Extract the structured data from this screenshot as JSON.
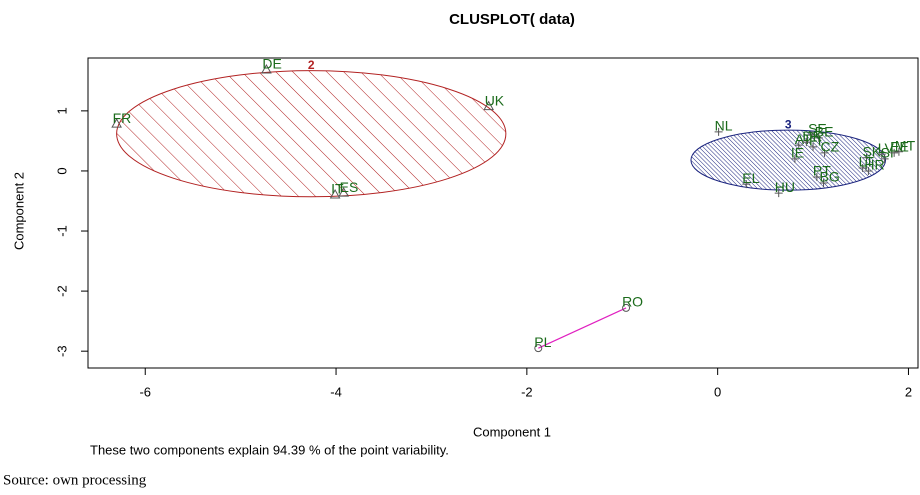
{
  "chart_data": {
    "type": "clusplot",
    "title": "CLUSPLOT( data)",
    "xlabel": "Component 1",
    "ylabel": "Component 2",
    "subtitle": "These two components explain 94.39 % of the point variability.",
    "xlim": [
      -6.6,
      2.1
    ],
    "ylim": [
      -3.28,
      1.88
    ],
    "xticks": [
      -6,
      -4,
      -2,
      0,
      2
    ],
    "yticks": [
      1,
      0,
      -1,
      -2,
      -3
    ],
    "clusters": [
      {
        "name": "2",
        "color": "#b22222",
        "marker": "triangle",
        "ellipse": {
          "cx": -4.26,
          "cy": 0.62,
          "rx": 2.04,
          "ry": 1.05
        },
        "points": {
          "labels": [
            "DE",
            "FR",
            "UK",
            "ES",
            "IT"
          ],
          "x": [
            -4.73,
            -6.3,
            -2.4,
            -3.92,
            -4.01
          ],
          "y": [
            1.68,
            0.78,
            1.07,
            -0.37,
            -0.4
          ]
        }
      },
      {
        "name": "3",
        "color": "#1a237e",
        "marker": "plus",
        "ellipse": {
          "cx": 0.74,
          "cy": 0.18,
          "rx": 1.02,
          "ry": 0.5
        },
        "points": {
          "labels": [
            "NL",
            "AT",
            "BE",
            "SE",
            "FI",
            "DK",
            "CZ",
            "IE",
            "SK",
            "LV",
            "HR",
            "LT",
            "SI",
            "EE",
            "MT",
            "PT",
            "BG",
            "EL",
            "HU"
          ],
          "x": [
            0.01,
            0.85,
            1.06,
            0.99,
            1.0,
            0.93,
            1.12,
            0.81,
            1.56,
            1.72,
            1.58,
            1.52,
            1.75,
            1.85,
            1.9,
            1.04,
            1.11,
            0.3,
            0.64
          ],
          "y": [
            0.65,
            0.43,
            0.55,
            0.6,
            0.4,
            0.48,
            0.3,
            0.2,
            0.22,
            0.28,
            0.0,
            0.05,
            0.2,
            0.3,
            0.32,
            -0.1,
            -0.2,
            -0.22,
            -0.37
          ]
        }
      },
      {
        "color": "#e020c0",
        "marker": "circle",
        "points": {
          "labels": [
            "RO",
            "PL"
          ],
          "x": [
            -0.96,
            -1.88
          ],
          "y": [
            -2.28,
            -2.95
          ]
        }
      }
    ]
  },
  "source": "Source: own processing"
}
